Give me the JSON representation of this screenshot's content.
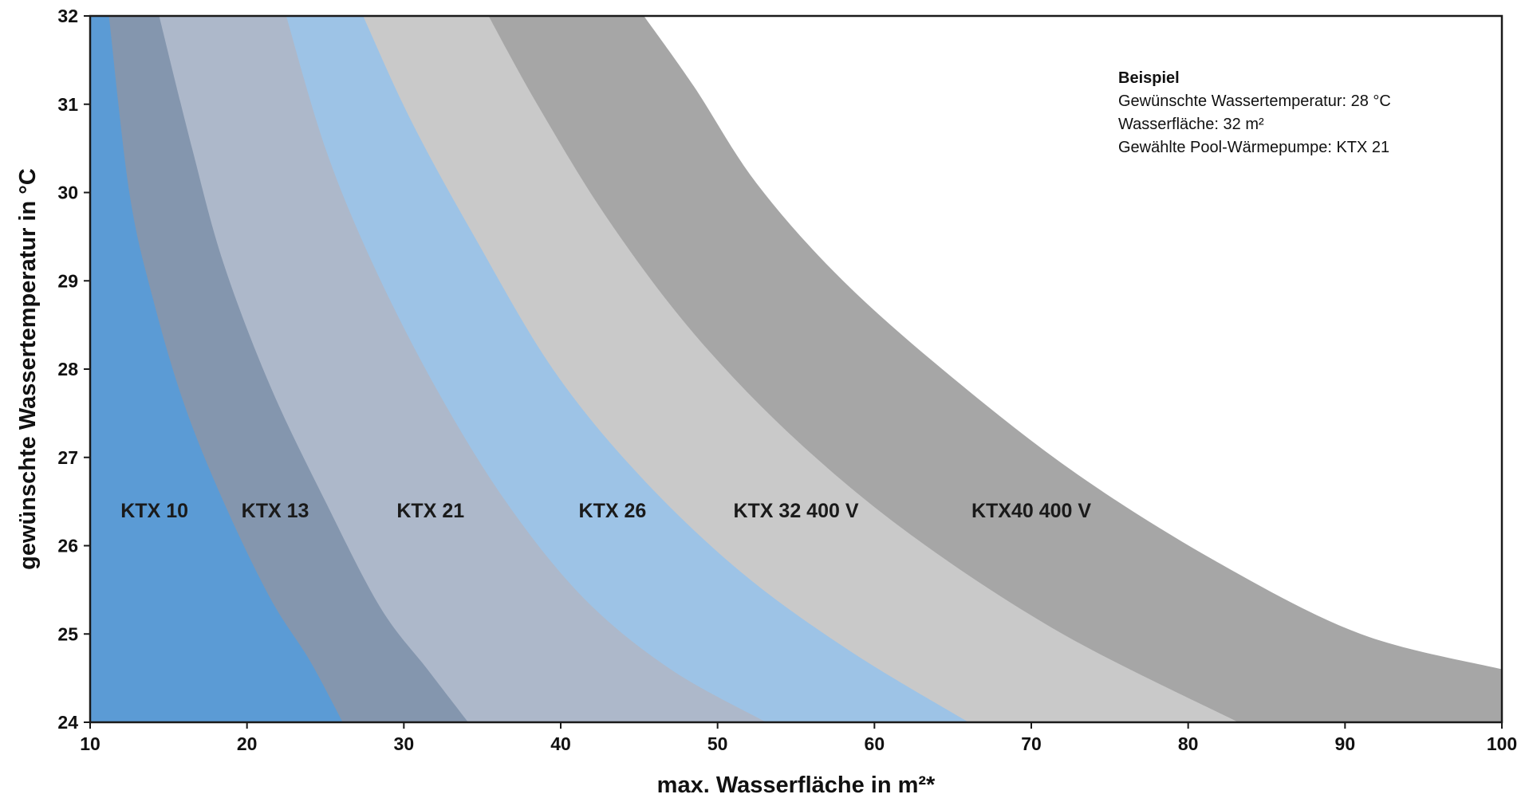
{
  "chart_data": {
    "type": "area",
    "xlabel": "max. Wasserfläche in m²*",
    "ylabel": "gewünschte Wassertemperatur in °C",
    "xlim": [
      10,
      100
    ],
    "ylim": [
      24,
      32
    ],
    "x_ticks": [
      "10",
      "20",
      "30",
      "40",
      "50",
      "60",
      "70",
      "80",
      "90",
      "100"
    ],
    "y_ticks": [
      "24",
      "25",
      "26",
      "27",
      "28",
      "29",
      "30",
      "31",
      "32"
    ],
    "grid": false,
    "label_temperature": 26.4,
    "series": [
      {
        "name": "KTX 10",
        "color": "#5b9bd5",
        "label_x": 14.1,
        "boundary": [
          [
            11.2,
            32
          ],
          [
            12.5,
            30
          ],
          [
            14.0,
            28.8
          ],
          [
            16.0,
            27.6
          ],
          [
            18.5,
            26.5
          ],
          [
            21.5,
            25.4
          ],
          [
            24.0,
            24.7
          ],
          [
            26.1,
            24
          ]
        ]
      },
      {
        "name": "KTX 13",
        "color": "#8496ae",
        "label_x": 21.8,
        "boundary": [
          [
            14.4,
            32
          ],
          [
            16.5,
            30.5
          ],
          [
            18.5,
            29.2
          ],
          [
            21.5,
            27.8
          ],
          [
            25.0,
            26.5
          ],
          [
            28.5,
            25.3
          ],
          [
            31.5,
            24.6
          ],
          [
            34.1,
            24
          ]
        ]
      },
      {
        "name": "KTX 21",
        "color": "#adb8ca",
        "label_x": 31.7,
        "boundary": [
          [
            22.5,
            32
          ],
          [
            25.0,
            30.5
          ],
          [
            28.0,
            29.2
          ],
          [
            32.0,
            27.8
          ],
          [
            36.5,
            26.5
          ],
          [
            41.5,
            25.4
          ],
          [
            47.0,
            24.6
          ],
          [
            53.1,
            24
          ]
        ]
      },
      {
        "name": "KTX 26",
        "color": "#9dc3e6",
        "label_x": 43.3,
        "boundary": [
          [
            27.4,
            32
          ],
          [
            30.5,
            30.8
          ],
          [
            34.5,
            29.5
          ],
          [
            39.5,
            28.0
          ],
          [
            45.0,
            26.8
          ],
          [
            51.5,
            25.7
          ],
          [
            58.5,
            24.8
          ],
          [
            66.0,
            24
          ]
        ]
      },
      {
        "name": "KTX 32 400 V",
        "color": "#c9c9c9",
        "label_x": 55.0,
        "boundary": [
          [
            35.4,
            32
          ],
          [
            38.5,
            31
          ],
          [
            43.0,
            29.7
          ],
          [
            48.5,
            28.4
          ],
          [
            55.0,
            27.2
          ],
          [
            62.5,
            26.1
          ],
          [
            72.0,
            25.0
          ],
          [
            83.2,
            24
          ]
        ]
      },
      {
        "name": "KTX40 400 V",
        "color": "#a6a6a6",
        "label_x": 70.0,
        "boundary": [
          [
            45.3,
            32
          ],
          [
            48.5,
            31.2
          ],
          [
            52.5,
            30.1
          ],
          [
            58.0,
            29.0
          ],
          [
            65.0,
            27.9
          ],
          [
            73.0,
            26.8
          ],
          [
            82.0,
            25.8
          ],
          [
            91.0,
            25.0
          ],
          [
            100.0,
            24.6
          ]
        ]
      }
    ]
  },
  "example_box": {
    "heading": "Beispiel",
    "lines": [
      "Gewünschte Wassertemperatur: 28 °C",
      "Wasserfläche: 32 m²",
      "Gewählte Pool-Wärmepumpe: KTX 21"
    ]
  }
}
